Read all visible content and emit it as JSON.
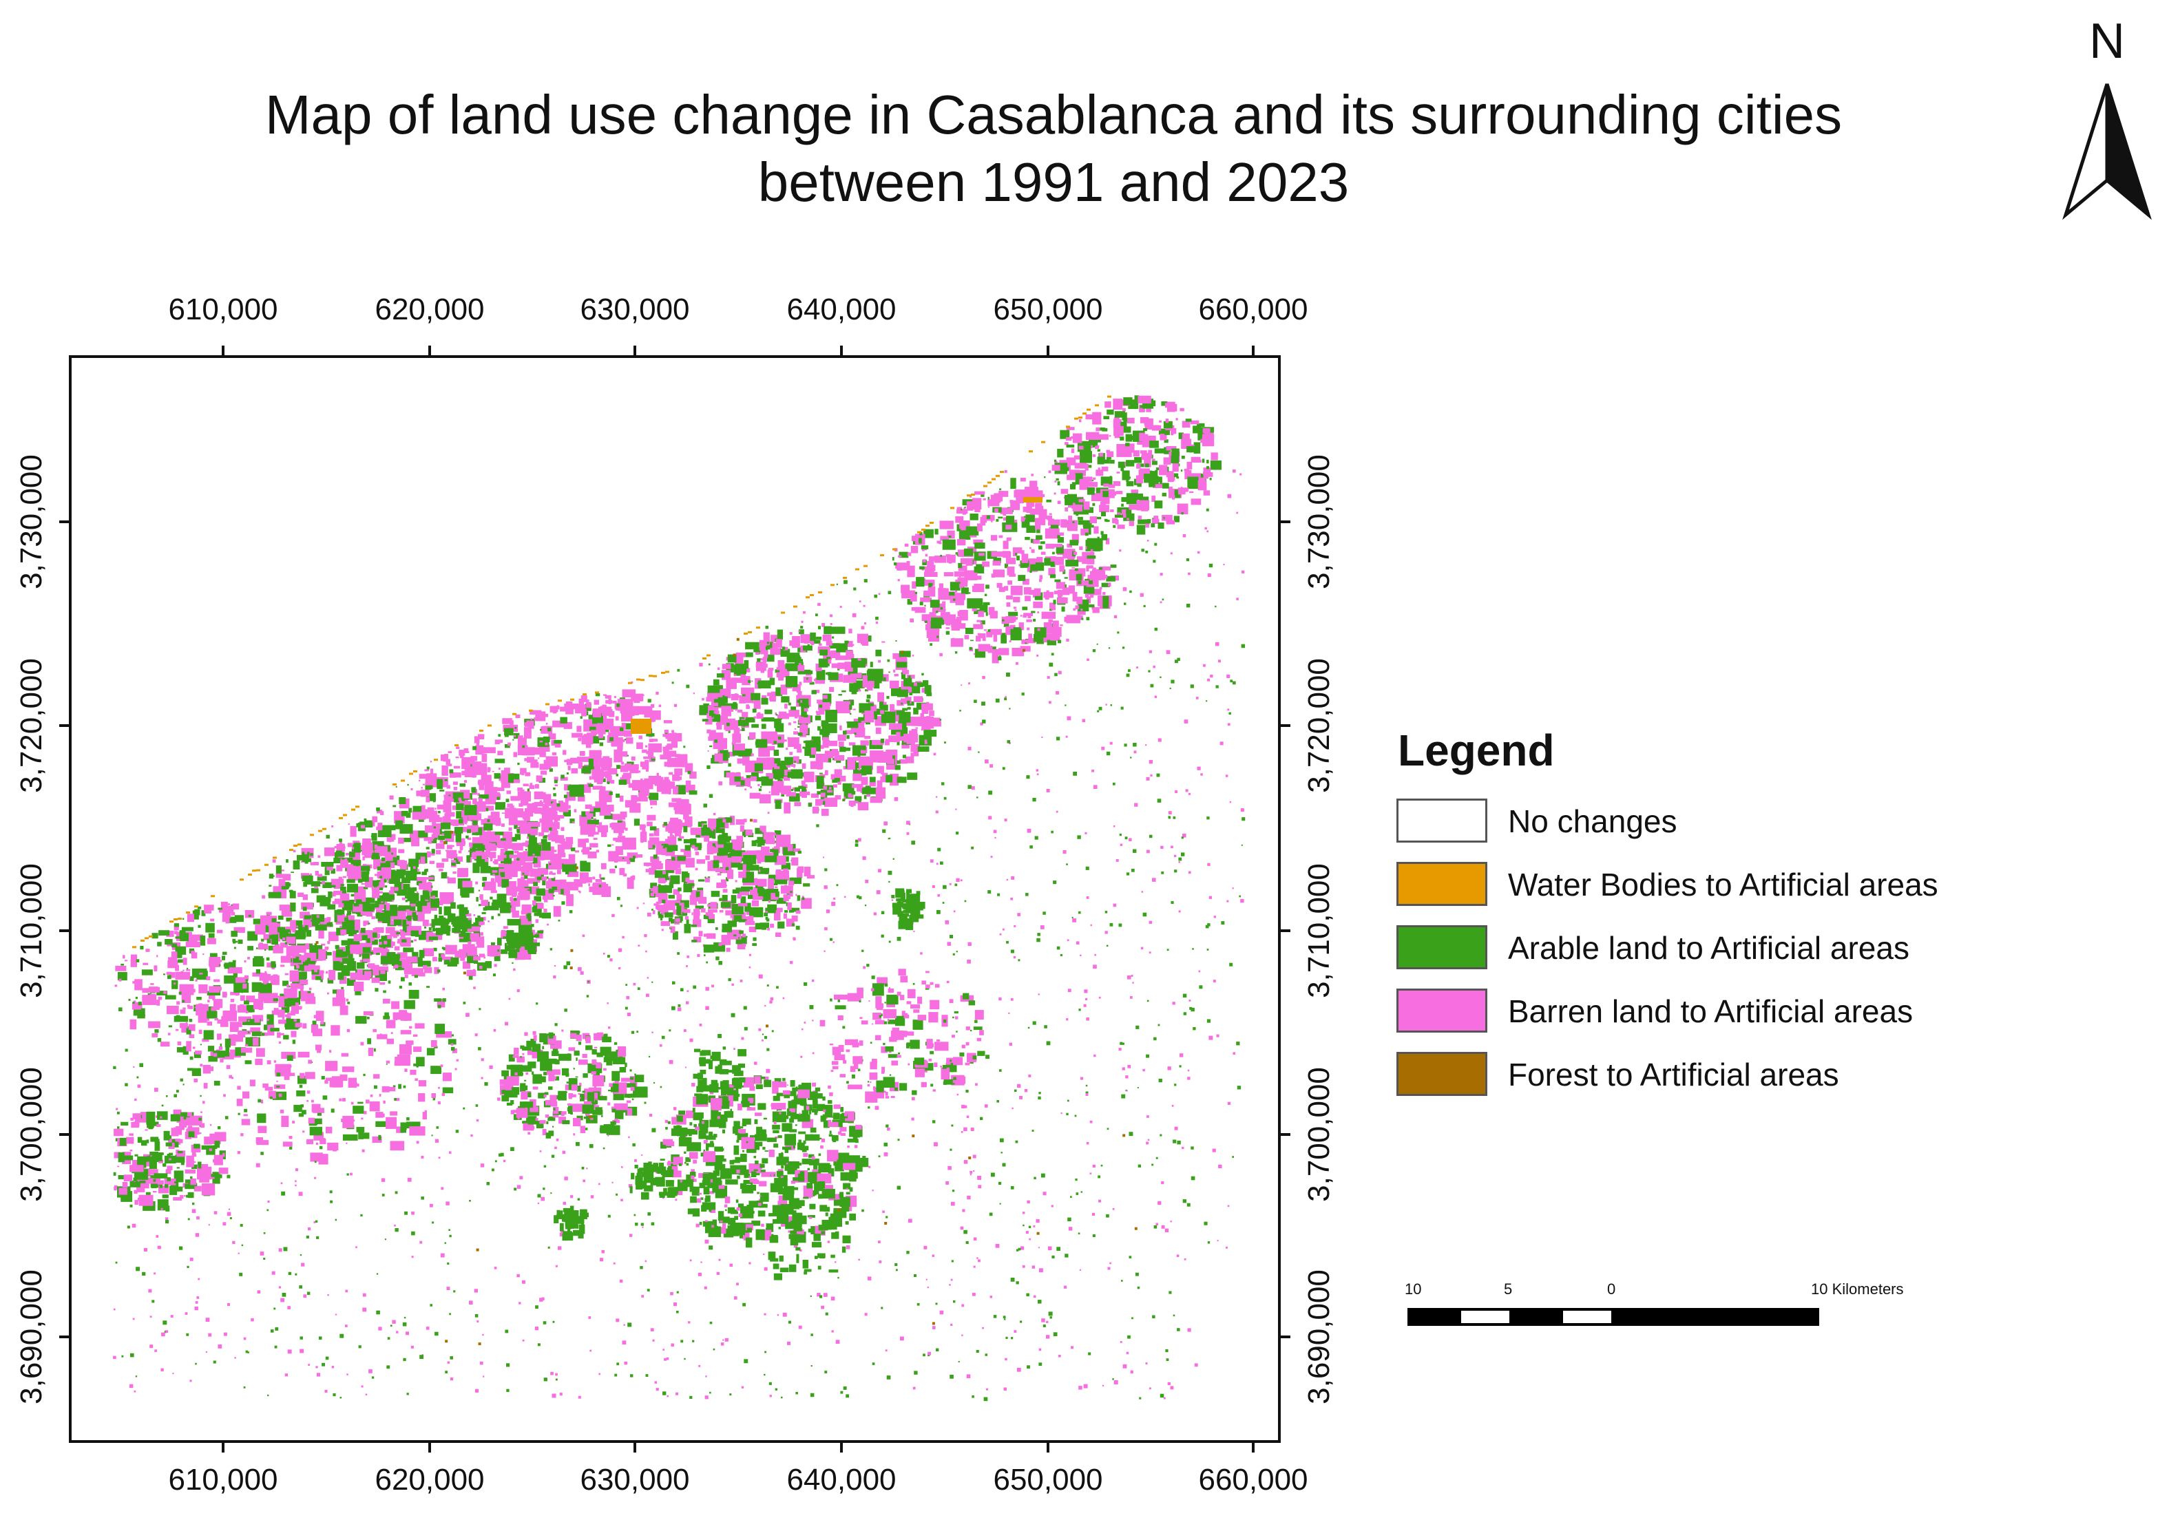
{
  "title": {
    "line1": "Map of land use change in Casablanca and its surrounding cities",
    "line2": "between 1991 and 2023"
  },
  "north_arrow": {
    "letter": "N",
    "icon": "north-arrow-icon"
  },
  "x_ticks": [
    "610,000",
    "620,000",
    "630,000",
    "640,000",
    "650,000",
    "660,000"
  ],
  "y_ticks": [
    "3,730,000",
    "3,720,000",
    "3,710,000",
    "3,700,000",
    "3,690,000"
  ],
  "legend": {
    "title": "Legend",
    "items": [
      {
        "label": "No changes",
        "color": "#ffffff"
      },
      {
        "label": "Water Bodies to Artificial areas",
        "color": "#e69a00"
      },
      {
        "label": "Arable land to Artificial areas",
        "color": "#3aa21a"
      },
      {
        "label": "Barren land to Artificial areas",
        "color": "#f76ee0"
      },
      {
        "label": "Forest to Artificial areas",
        "color": "#a86d00"
      }
    ]
  },
  "scale_bar": {
    "labels": [
      "10",
      "5",
      "0",
      "10 Kilometers"
    ]
  },
  "colors": {
    "arable": "#3aa21a",
    "barren": "#f76ee0",
    "water": "#e69a00",
    "forest": "#a86d00"
  }
}
